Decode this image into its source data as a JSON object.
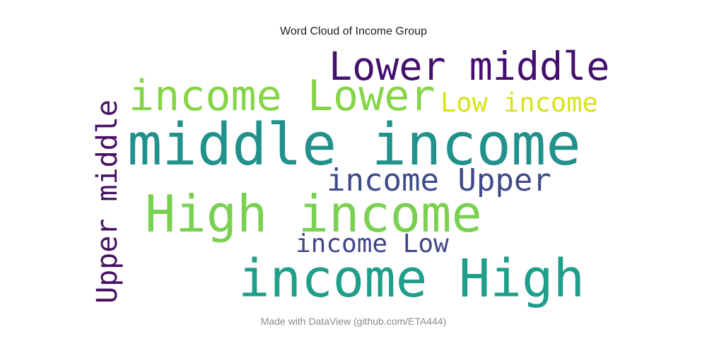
{
  "title": "Word Cloud of Income Group",
  "footer": "Made with DataView (github.com/ETA444)",
  "chart_data": {
    "type": "wordcloud",
    "title": "Word Cloud of Income Group",
    "colormap": "viridis",
    "background": "#ffffff",
    "words": [
      {
        "text": "middle income",
        "weight": 1.0,
        "color": "#21918c",
        "orientation": "horizontal"
      },
      {
        "text": "income High",
        "weight": 0.82,
        "color": "#1f9e89",
        "orientation": "horizontal"
      },
      {
        "text": "High income",
        "weight": 0.78,
        "color": "#7ad151",
        "orientation": "horizontal"
      },
      {
        "text": "income Lower",
        "weight": 0.7,
        "color": "#86d549",
        "orientation": "horizontal"
      },
      {
        "text": "Lower middle",
        "weight": 0.66,
        "color": "#440f6e",
        "orientation": "horizontal"
      },
      {
        "text": "Upper middle",
        "weight": 0.46,
        "color": "#471063",
        "orientation": "vertical"
      },
      {
        "text": "income Upper",
        "weight": 0.54,
        "color": "#3e4a89",
        "orientation": "horizontal"
      },
      {
        "text": "income Low",
        "weight": 0.43,
        "color": "#414487",
        "orientation": "horizontal"
      },
      {
        "text": "Low income",
        "weight": 0.45,
        "color": "#d8e219",
        "orientation": "horizontal"
      }
    ]
  }
}
